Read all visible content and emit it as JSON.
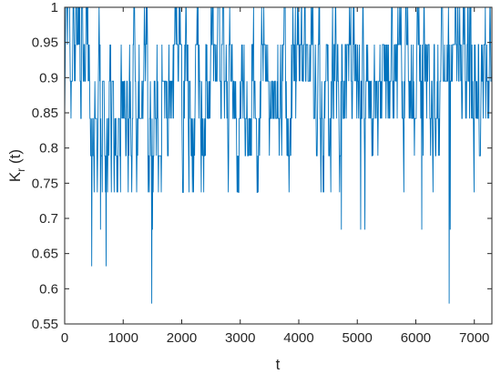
{
  "chart_data": {
    "type": "line",
    "title": "",
    "xlabel": "t",
    "ylabel": {
      "base": "K",
      "subscript": "r",
      "suffix": " (t)"
    },
    "xlim": [
      0,
      7300
    ],
    "ylim": [
      0.55,
      1.0
    ],
    "xticks": [
      0,
      1000,
      2000,
      3000,
      4000,
      5000,
      6000,
      7000
    ],
    "xtick_labels": [
      "0",
      "1000",
      "2000",
      "3000",
      "4000",
      "5000",
      "6000",
      "7000"
    ],
    "yticks": [
      0.55,
      0.6,
      0.65,
      0.7,
      0.75,
      0.8,
      0.85,
      0.9,
      0.95,
      1.0
    ],
    "ytick_labels": [
      "0.55",
      "0.6",
      "0.65",
      "0.7",
      "0.75",
      "0.8",
      "0.85",
      "0.9",
      "0.95",
      "1"
    ],
    "grid": false,
    "line_color": "#0072BD",
    "series": [
      {
        "levels": [
          1.0,
          0.947,
          0.895,
          0.842,
          0.789,
          0.737,
          0.684,
          0.632,
          0.579
        ],
        "dips": [
          {
            "x": 460,
            "y": 0.632
          },
          {
            "x": 610,
            "y": 0.684
          },
          {
            "x": 710,
            "y": 0.632
          },
          {
            "x": 1490,
            "y": 0.579
          },
          {
            "x": 1500,
            "y": 0.684
          },
          {
            "x": 4730,
            "y": 0.684
          },
          {
            "x": 5060,
            "y": 0.684
          },
          {
            "x": 5130,
            "y": 0.684
          },
          {
            "x": 6100,
            "y": 0.684
          },
          {
            "x": 6570,
            "y": 0.579
          },
          {
            "x": 6590,
            "y": 0.684
          }
        ]
      }
    ]
  }
}
